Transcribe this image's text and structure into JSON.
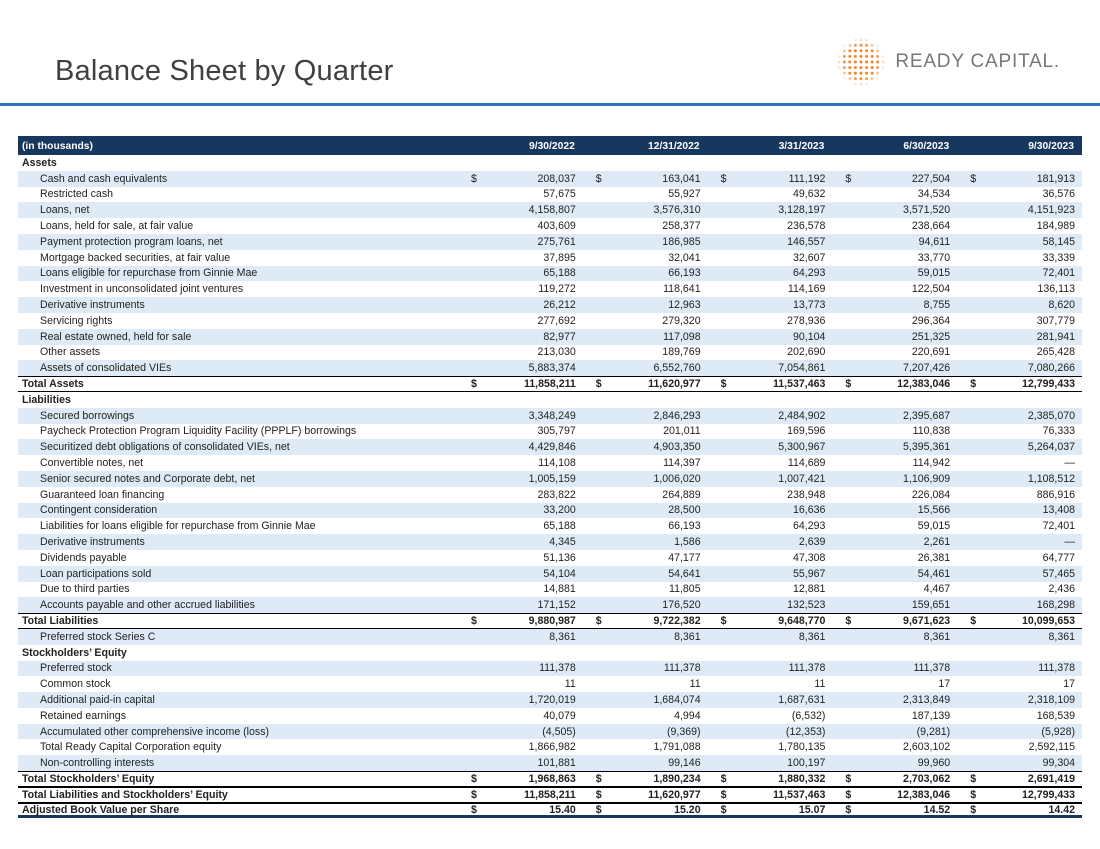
{
  "page": {
    "title": "Balance Sheet by Quarter",
    "logo": {
      "text": "READY CAPITAL.",
      "accent_color": "#F58220",
      "navy": "#17375E",
      "rule_blue": "#2E75B6"
    }
  },
  "table": {
    "header": {
      "label": "(in thousands)",
      "columns": [
        "9/30/2022",
        "12/31/2022",
        "3/31/2023",
        "6/30/2023",
        "9/30/2023"
      ]
    },
    "rows": [
      {
        "type": "section",
        "label": "Assets"
      },
      {
        "type": "data",
        "label": "Cash and cash equivalents",
        "dollar": true,
        "values": [
          "208,037",
          "163,041",
          "111,192",
          "227,504",
          "181,913"
        ]
      },
      {
        "type": "data",
        "label": "Restricted cash",
        "values": [
          "57,675",
          "55,927",
          "49,632",
          "34,534",
          "36,576"
        ]
      },
      {
        "type": "data",
        "label": "Loans, net",
        "values": [
          "4,158,807",
          "3,576,310",
          "3,128,197",
          "3,571,520",
          "4,151,923"
        ]
      },
      {
        "type": "data",
        "label": "Loans, held for sale, at fair value",
        "values": [
          "403,609",
          "258,377",
          "236,578",
          "238,664",
          "184,989"
        ]
      },
      {
        "type": "data",
        "label": "Payment protection program loans, net",
        "values": [
          "275,761",
          "186,985",
          "146,557",
          "94,611",
          "58,145"
        ]
      },
      {
        "type": "data",
        "label": "Mortgage backed securities, at fair value",
        "values": [
          "37,895",
          "32,041",
          "32,607",
          "33,770",
          "33,339"
        ]
      },
      {
        "type": "data",
        "label": "Loans eligible for repurchase from Ginnie Mae",
        "values": [
          "65,188",
          "66,193",
          "64,293",
          "59,015",
          "72,401"
        ]
      },
      {
        "type": "data",
        "label": "Investment in unconsolidated joint ventures",
        "values": [
          "119,272",
          "118,641",
          "114,169",
          "122,504",
          "136,113"
        ]
      },
      {
        "type": "data",
        "label": "Derivative instruments",
        "values": [
          "26,212",
          "12,963",
          "13,773",
          "8,755",
          "8,620"
        ]
      },
      {
        "type": "data",
        "label": "Servicing rights",
        "values": [
          "277,692",
          "279,320",
          "278,936",
          "296,364",
          "307,779"
        ]
      },
      {
        "type": "data",
        "label": "Real estate owned, held for sale",
        "values": [
          "82,977",
          "117,098",
          "90,104",
          "251,325",
          "281,941"
        ]
      },
      {
        "type": "data",
        "label": "Other assets",
        "values": [
          "213,030",
          "189,769",
          "202,690",
          "220,691",
          "265,428"
        ]
      },
      {
        "type": "data",
        "label": "Assets of consolidated VIEs",
        "values": [
          "5,883,374",
          "6,552,760",
          "7,054,861",
          "7,207,426",
          "7,080,266"
        ]
      },
      {
        "type": "total",
        "label": "Total Assets",
        "dollar": true,
        "values": [
          "11,858,211",
          "11,620,977",
          "11,537,463",
          "12,383,046",
          "12,799,433"
        ]
      },
      {
        "type": "section",
        "label": "Liabilities"
      },
      {
        "type": "data",
        "label": "Secured borrowings",
        "values": [
          "3,348,249",
          "2,846,293",
          "2,484,902",
          "2,395,687",
          "2,385,070"
        ]
      },
      {
        "type": "data",
        "label": "Paycheck Protection Program Liquidity Facility (PPPLF) borrowings",
        "values": [
          "305,797",
          "201,011",
          "169,596",
          "110,838",
          "76,333"
        ]
      },
      {
        "type": "data",
        "label": "Securitized debt obligations of consolidated VIEs, net",
        "values": [
          "4,429,846",
          "4,903,350",
          "5,300,967",
          "5,395,361",
          "5,264,037"
        ]
      },
      {
        "type": "data",
        "label": "Convertible notes, net",
        "values": [
          "114,108",
          "114,397",
          "114,689",
          "114,942",
          "—"
        ]
      },
      {
        "type": "data",
        "label": "Senior secured notes and Corporate debt, net",
        "values": [
          "1,005,159",
          "1,006,020",
          "1,007,421",
          "1,106,909",
          "1,108,512"
        ]
      },
      {
        "type": "data",
        "label": "Guaranteed loan financing",
        "values": [
          "283,822",
          "264,889",
          "238,948",
          "226,084",
          "886,916"
        ]
      },
      {
        "type": "data",
        "label": "Contingent consideration",
        "values": [
          "33,200",
          "28,500",
          "16,636",
          "15,566",
          "13,408"
        ]
      },
      {
        "type": "data",
        "label": "Liabilities for loans eligible for repurchase from Ginnie Mae",
        "values": [
          "65,188",
          "66,193",
          "64,293",
          "59,015",
          "72,401"
        ]
      },
      {
        "type": "data",
        "label": "Derivative instruments",
        "values": [
          "4,345",
          "1,586",
          "2,639",
          "2,261",
          "—"
        ]
      },
      {
        "type": "data",
        "label": "Dividends payable",
        "values": [
          "51,136",
          "47,177",
          "47,308",
          "26,381",
          "64,777"
        ]
      },
      {
        "type": "data",
        "label": "Loan participations sold",
        "values": [
          "54,104",
          "54,641",
          "55,967",
          "54,461",
          "57,465"
        ]
      },
      {
        "type": "data",
        "label": "Due to third parties",
        "values": [
          "14,881",
          "11,805",
          "12,881",
          "4,467",
          "2,436"
        ]
      },
      {
        "type": "data",
        "label": "Accounts payable and other accrued liabilities",
        "values": [
          "171,152",
          "176,520",
          "132,523",
          "159,651",
          "168,298"
        ]
      },
      {
        "type": "total",
        "label": "Total Liabilities",
        "dollar": true,
        "values": [
          "9,880,987",
          "9,722,382",
          "9,648,770",
          "9,671,623",
          "10,099,653"
        ]
      },
      {
        "type": "data",
        "label": "Preferred stock Series C",
        "values": [
          "8,361",
          "8,361",
          "8,361",
          "8,361",
          "8,361"
        ]
      },
      {
        "type": "section",
        "label": "Stockholders’ Equity"
      },
      {
        "type": "data",
        "label": "Preferred stock",
        "values": [
          "111,378",
          "111,378",
          "111,378",
          "111,378",
          "111,378"
        ]
      },
      {
        "type": "data",
        "label": "Common stock",
        "values": [
          "11",
          "11",
          "11",
          "17",
          "17"
        ]
      },
      {
        "type": "data",
        "label": "Additional paid-in capital",
        "values": [
          "1,720,019",
          "1,684,074",
          "1,687,631",
          "2,313,849",
          "2,318,109"
        ]
      },
      {
        "type": "data",
        "label": "Retained earnings",
        "values": [
          "40,079",
          "4,994",
          "(6,532)",
          "187,139",
          "168,539"
        ]
      },
      {
        "type": "data",
        "label": "Accumulated other comprehensive income (loss)",
        "values": [
          "(4,505)",
          "(9,369)",
          "(12,353)",
          "(9,281)",
          "(5,928)"
        ]
      },
      {
        "type": "data",
        "label": "Total Ready Capital Corporation equity",
        "values": [
          "1,866,982",
          "1,791,088",
          "1,780,135",
          "2,603,102",
          "2,592,115"
        ]
      },
      {
        "type": "data",
        "label": "Non-controlling interests",
        "values": [
          "101,881",
          "99,146",
          "100,197",
          "99,960",
          "99,304"
        ]
      },
      {
        "type": "total",
        "label": "Total Stockholders’ Equity",
        "dollar": true,
        "values": [
          "1,968,863",
          "1,890,234",
          "1,880,332",
          "2,703,062",
          "2,691,419"
        ]
      },
      {
        "type": "total",
        "label": "Total Liabilities and Stockholders’ Equity",
        "dollar": true,
        "values": [
          "11,858,211",
          "11,620,977",
          "11,537,463",
          "12,383,046",
          "12,799,433"
        ]
      },
      {
        "type": "total",
        "label": "Adjusted Book Value per Share",
        "dollar": true,
        "values": [
          "15.40",
          "15.20",
          "15.07",
          "14.52",
          "14.42"
        ]
      }
    ]
  }
}
